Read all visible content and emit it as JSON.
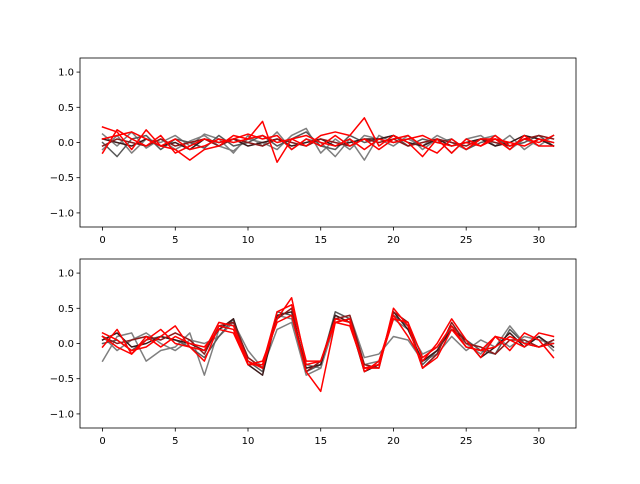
{
  "chart_data": [
    {
      "type": "line",
      "title": "",
      "xlabel": "",
      "ylabel": "",
      "xlim": [
        -1.55,
        32.55
      ],
      "ylim": [
        -1.2,
        1.2
      ],
      "xticks": [
        0,
        5,
        10,
        15,
        20,
        25,
        30
      ],
      "yticks": [
        -1.0,
        -0.5,
        0.0,
        0.5,
        1.0
      ],
      "xtick_labels": [
        "0",
        "5",
        "10",
        "15",
        "20",
        "25",
        "30"
      ],
      "ytick_labels": [
        "−1.0",
        "−0.5",
        "0.0",
        "0.5",
        "1.0"
      ],
      "grid": false,
      "x": [
        0,
        1,
        2,
        3,
        4,
        5,
        6,
        7,
        8,
        9,
        10,
        11,
        12,
        13,
        14,
        15,
        16,
        17,
        18,
        19,
        20,
        21,
        22,
        23,
        24,
        25,
        26,
        27,
        28,
        29,
        30,
        31
      ],
      "series": [
        {
          "color": "#7f7f7f",
          "values": [
            0.12,
            -0.05,
            0.15,
            -0.08,
            0.05,
            -0.1,
            0.02,
            0.1,
            -0.05,
            -0.12,
            0.05,
            0.0,
            -0.1,
            0.1,
            0.2,
            -0.15,
            0.05,
            -0.1,
            0.1,
            0.05,
            -0.05,
            0.1,
            -0.1,
            0.05,
            -0.15,
            0.05,
            0.1,
            -0.05,
            0.1,
            -0.1,
            0.05,
            0.0
          ]
        },
        {
          "color": "#7f7f7f",
          "values": [
            -0.1,
            0.1,
            -0.15,
            0.05,
            0.0,
            0.1,
            -0.05,
            0.12,
            0.05,
            -0.15,
            0.1,
            -0.05,
            0.15,
            -0.1,
            0.05,
            0.0,
            -0.2,
            0.05,
            -0.25,
            0.1,
            0.0,
            0.05,
            -0.05,
            0.1,
            0.0,
            -0.1,
            0.05,
            0.1,
            -0.1,
            0.05,
            -0.05,
            0.1
          ]
        },
        {
          "color": "#595959",
          "values": [
            0.0,
            -0.2,
            0.05,
            0.1,
            -0.1,
            0.05,
            0.0,
            -0.08,
            0.1,
            -0.05,
            0.0,
            0.1,
            -0.05,
            0.05,
            0.15,
            -0.05,
            -0.1,
            0.1,
            0.0,
            0.05,
            0.1,
            -0.05,
            0.05,
            0.0,
            0.05,
            -0.1,
            0.0,
            0.05,
            -0.05,
            0.0,
            0.1,
            -0.05
          ]
        },
        {
          "color": "#3b1a1a",
          "values": [
            0.05,
            0.0,
            -0.05,
            0.05,
            -0.05,
            0.0,
            -0.1,
            0.05,
            0.0,
            0.05,
            -0.05,
            0.0,
            0.05,
            -0.05,
            0.0,
            0.05,
            -0.05,
            0.0,
            0.05,
            0.05,
            0.1,
            0.0,
            -0.05,
            0.05,
            -0.05,
            0.0,
            0.05,
            -0.05,
            0.0,
            0.1,
            0.05,
            -0.05
          ]
        },
        {
          "color": "#8b1a1a",
          "values": [
            -0.05,
            0.05,
            0.0,
            -0.05,
            0.05,
            -0.05,
            0.0,
            0.05,
            -0.05,
            0.05,
            0.0,
            -0.05,
            0.05,
            0.0,
            -0.05,
            0.05,
            0.0,
            -0.05,
            0.05,
            0.0,
            0.05,
            -0.05,
            0.0,
            0.05,
            0.0,
            -0.05,
            0.05,
            0.0,
            -0.05,
            0.05,
            0.1,
            0.05
          ]
        },
        {
          "color": "#ff0000",
          "values": [
            0.22,
            0.15,
            -0.1,
            0.18,
            -0.05,
            -0.1,
            -0.25,
            -0.1,
            -0.05,
            0.1,
            0.05,
            0.3,
            -0.28,
            0.05,
            -0.05,
            0.1,
            0.15,
            0.1,
            0.35,
            -0.05,
            0.1,
            0.0,
            -0.2,
            0.05,
            -0.15,
            0.05,
            -0.05,
            0.1,
            -0.05,
            0.05,
            0.0,
            0.1
          ]
        },
        {
          "color": "#ff0000",
          "values": [
            -0.15,
            0.18,
            0.05,
            -0.05,
            0.1,
            -0.15,
            -0.05,
            0.05,
            0.0,
            0.05,
            0.12,
            0.05,
            0.1,
            -0.1,
            0.05,
            -0.05,
            0.1,
            -0.05,
            0.05,
            -0.1,
            0.05,
            0.1,
            -0.05,
            -0.15,
            0.05,
            -0.1,
            0.05,
            0.05,
            -0.1,
            0.1,
            -0.05,
            -0.05
          ]
        },
        {
          "color": "#ff0000",
          "values": [
            0.05,
            0.1,
            0.15,
            0.05,
            -0.05,
            0.05,
            -0.1,
            -0.05,
            0.05,
            0.0,
            0.05,
            0.1,
            0.0,
            0.05,
            0.1,
            0.0,
            -0.05,
            0.05,
            -0.1,
            0.05,
            0.0,
            0.05,
            0.1,
            0.0,
            -0.05,
            0.0,
            -0.05,
            0.05,
            0.0,
            -0.05,
            0.05,
            0.0
          ]
        }
      ]
    },
    {
      "type": "line",
      "title": "",
      "xlabel": "",
      "ylabel": "",
      "xlim": [
        -1.55,
        32.55
      ],
      "ylim": [
        -1.2,
        1.2
      ],
      "xticks": [
        0,
        5,
        10,
        15,
        20,
        25,
        30
      ],
      "yticks": [
        -1.0,
        -0.5,
        0.0,
        0.5,
        1.0
      ],
      "xtick_labels": [
        "0",
        "5",
        "10",
        "15",
        "20",
        "25",
        "30"
      ],
      "ytick_labels": [
        "−1.0",
        "−0.5",
        "0.0",
        "0.5",
        "1.0"
      ],
      "grid": false,
      "x": [
        0,
        1,
        2,
        3,
        4,
        5,
        6,
        7,
        8,
        9,
        10,
        11,
        12,
        13,
        14,
        15,
        16,
        17,
        18,
        19,
        20,
        21,
        22,
        23,
        24,
        25,
        26,
        27,
        28,
        29,
        30,
        31
      ],
      "series": [
        {
          "color": "#7f7f7f",
          "values": [
            -0.25,
            0.1,
            0.15,
            -0.25,
            -0.1,
            -0.05,
            0.15,
            -0.45,
            0.2,
            0.3,
            -0.1,
            -0.35,
            0.2,
            0.3,
            -0.45,
            -0.35,
            0.35,
            0.4,
            -0.2,
            -0.15,
            0.1,
            0.05,
            -0.25,
            -0.15,
            0.1,
            -0.1,
            0.05,
            -0.05,
            0.25,
            0.0,
            0.1,
            -0.1
          ]
        },
        {
          "color": "#7f7f7f",
          "values": [
            0.1,
            -0.1,
            0.05,
            0.15,
            0.0,
            -0.1,
            0.05,
            0.0,
            0.1,
            0.3,
            -0.2,
            -0.35,
            0.4,
            0.35,
            -0.3,
            -0.35,
            0.3,
            0.35,
            -0.3,
            -0.25,
            0.35,
            0.2,
            -0.15,
            -0.05,
            0.2,
            0.0,
            -0.15,
            0.1,
            -0.05,
            0.1,
            0.05,
            0.0
          ]
        },
        {
          "color": "#595959",
          "values": [
            0.0,
            0.05,
            -0.1,
            0.05,
            0.1,
            0.05,
            -0.05,
            -0.2,
            0.1,
            0.35,
            -0.25,
            -0.4,
            0.45,
            0.4,
            -0.4,
            -0.3,
            0.45,
            0.35,
            -0.35,
            -0.3,
            0.4,
            0.25,
            -0.3,
            -0.1,
            0.25,
            0.05,
            -0.1,
            -0.15,
            0.2,
            0.0,
            -0.05,
            0.05
          ]
        },
        {
          "color": "#3b1a1a",
          "values": [
            0.05,
            0.15,
            -0.05,
            0.0,
            0.1,
            0.05,
            0.0,
            -0.1,
            0.2,
            0.35,
            -0.3,
            -0.45,
            0.4,
            0.45,
            -0.35,
            -0.3,
            0.4,
            0.3,
            -0.4,
            -0.3,
            0.45,
            0.2,
            -0.25,
            -0.1,
            0.2,
            0.05,
            -0.2,
            -0.05,
            0.15,
            -0.05,
            0.1,
            -0.05
          ]
        },
        {
          "color": "#8b1a1a",
          "values": [
            0.1,
            0.0,
            0.05,
            0.1,
            0.05,
            0.15,
            0.05,
            -0.15,
            0.25,
            0.3,
            -0.2,
            -0.35,
            0.35,
            0.5,
            -0.4,
            -0.25,
            0.35,
            0.4,
            -0.3,
            -0.35,
            0.45,
            0.3,
            -0.35,
            -0.15,
            0.3,
            0.0,
            -0.05,
            -0.15,
            0.05,
            0.05,
            -0.05,
            0.05
          ]
        },
        {
          "color": "#ff0000",
          "values": [
            0.15,
            0.05,
            -0.1,
            -0.05,
            0.1,
            0.25,
            -0.05,
            -0.1,
            0.3,
            0.25,
            -0.25,
            -0.35,
            0.35,
            0.65,
            -0.3,
            -0.25,
            0.35,
            0.3,
            -0.35,
            -0.35,
            0.5,
            0.25,
            -0.35,
            -0.2,
            0.2,
            -0.05,
            -0.1,
            0.1,
            0.05,
            -0.05,
            0.15,
            0.1
          ]
        },
        {
          "color": "#ff0000",
          "values": [
            -0.05,
            0.2,
            -0.15,
            0.1,
            -0.05,
            0.1,
            0.0,
            -0.05,
            0.2,
            0.15,
            -0.3,
            -0.25,
            0.3,
            0.4,
            -0.4,
            -0.68,
            0.3,
            0.35,
            -0.4,
            -0.25,
            0.4,
            0.1,
            -0.25,
            0.0,
            0.35,
            0.05,
            -0.2,
            0.1,
            -0.1,
            0.15,
            0.05,
            -0.2
          ]
        },
        {
          "color": "#ff0000",
          "values": [
            0.1,
            -0.05,
            -0.15,
            0.05,
            0.2,
            0.0,
            -0.05,
            -0.25,
            0.25,
            0.2,
            -0.3,
            -0.3,
            0.45,
            0.55,
            -0.25,
            -0.25,
            0.3,
            0.25,
            -0.35,
            -0.3,
            0.35,
            0.3,
            -0.2,
            -0.05,
            0.25,
            -0.05,
            -0.1,
            -0.05,
            0.1,
            0.0,
            -0.05,
            0.0
          ]
        }
      ]
    }
  ]
}
